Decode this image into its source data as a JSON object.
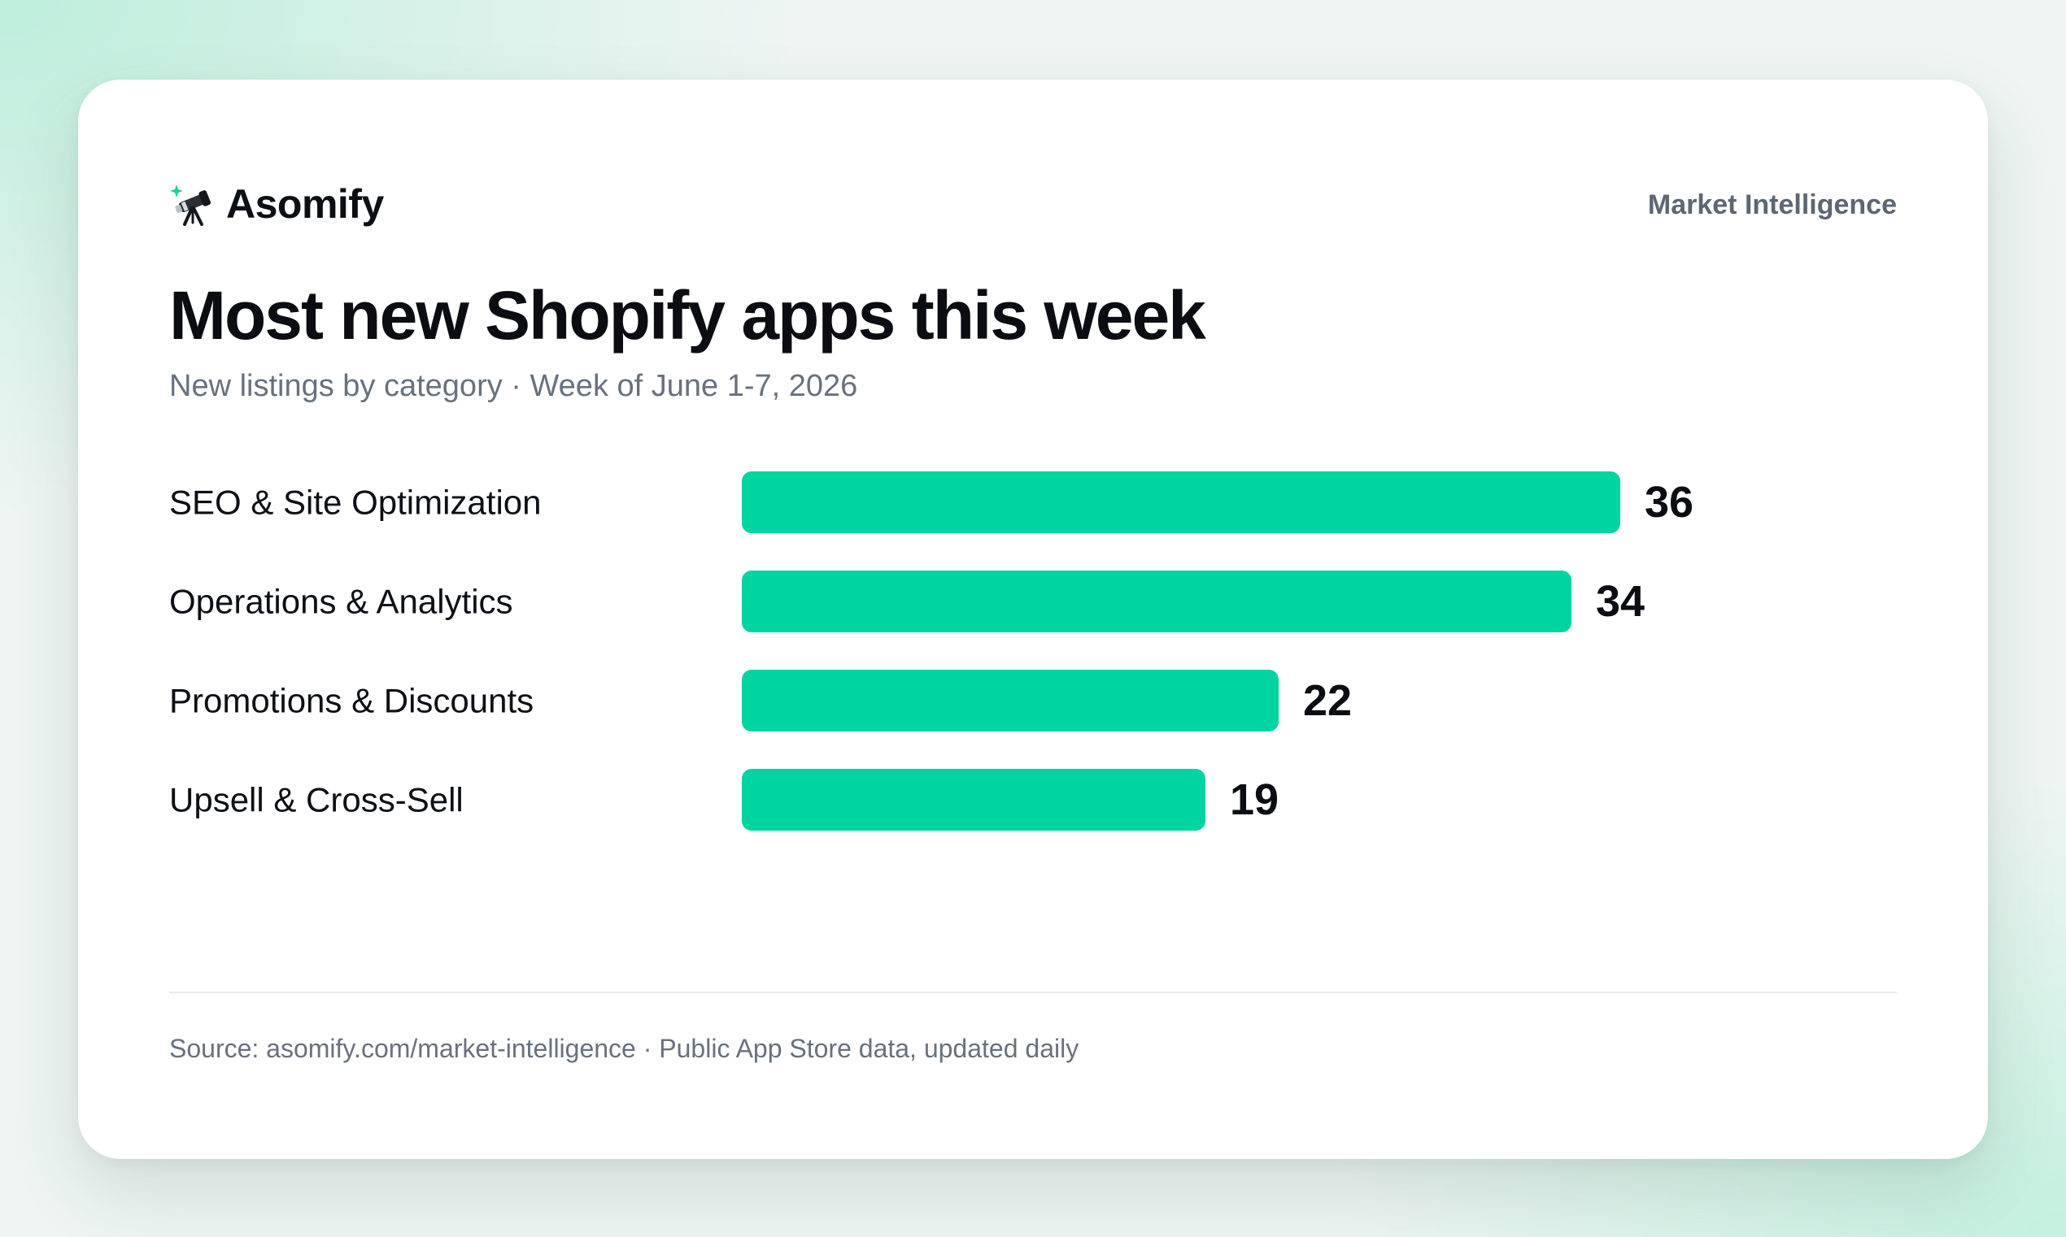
{
  "brand": {
    "name": "Asomify",
    "icon": "telescope-icon"
  },
  "header": {
    "section_label": "Market Intelligence"
  },
  "chart_data": {
    "type": "bar",
    "orientation": "horizontal",
    "title": "Most new Shopify apps this week",
    "subtitle": "New listings by category · Week of June 1-7, 2026",
    "categories": [
      "SEO & Site Optimization",
      "Operations & Analytics",
      "Promotions & Discounts",
      "Upsell & Cross-Sell"
    ],
    "values": [
      36,
      34,
      22,
      19
    ],
    "data_labels": [
      "36",
      "34",
      "22",
      "19"
    ],
    "bar_color": "#00d4a0",
    "xlim": [
      0,
      36
    ],
    "grid": false,
    "legend": "none"
  },
  "footer": {
    "source": "Source: asomify.com/market-intelligence · Public App Store data, updated daily"
  }
}
